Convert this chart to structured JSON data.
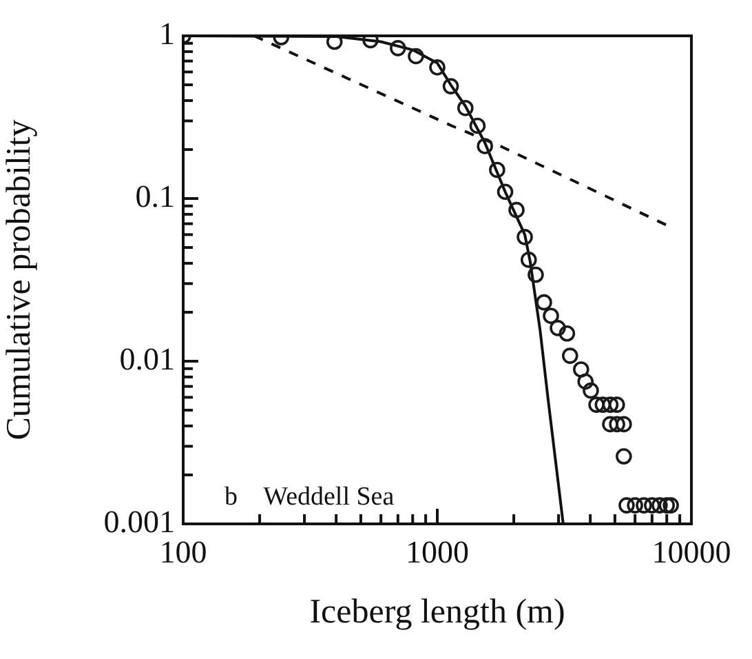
{
  "chart_data": {
    "type": "scatter",
    "xlabel": "Iceberg length (m)",
    "ylabel": "Cumulative probability",
    "log": "xy",
    "xlim": [
      100,
      10000
    ],
    "ylim": [
      0.001,
      1
    ],
    "xticks": [
      100,
      {
        "value": 200,
        "label": null
      },
      {
        "value": 300,
        "label": null
      },
      {
        "value": 400,
        "label": null
      },
      {
        "value": 500,
        "label": null
      },
      {
        "value": 600,
        "label": null
      },
      {
        "value": 700,
        "label": null
      },
      {
        "value": 800,
        "label": null
      },
      {
        "value": 900,
        "label": null
      },
      1000,
      {
        "value": 2000,
        "label": null
      },
      {
        "value": 3000,
        "label": null
      },
      {
        "value": 4000,
        "label": null
      },
      {
        "value": 5000,
        "label": null
      },
      {
        "value": 6000,
        "label": null
      },
      {
        "value": 7000,
        "label": null
      },
      {
        "value": 8000,
        "label": null
      },
      {
        "value": 9000,
        "label": null
      },
      10000
    ],
    "yticks": [
      0.001,
      {
        "value": 0.002,
        "label": null
      },
      {
        "value": 0.003,
        "label": null
      },
      {
        "value": 0.004,
        "label": null
      },
      {
        "value": 0.005,
        "label": null
      },
      {
        "value": 0.006,
        "label": null
      },
      {
        "value": 0.007,
        "label": null
      },
      {
        "value": 0.008,
        "label": null
      },
      {
        "value": 0.009,
        "label": null
      },
      0.01,
      {
        "value": 0.02,
        "label": null
      },
      {
        "value": 0.03,
        "label": null
      },
      {
        "value": 0.04,
        "label": null
      },
      {
        "value": 0.05,
        "label": null
      },
      {
        "value": 0.06,
        "label": null
      },
      {
        "value": 0.07,
        "label": null
      },
      {
        "value": 0.08,
        "label": null
      },
      {
        "value": 0.09,
        "label": null
      },
      0.1,
      {
        "value": 0.2,
        "label": null
      },
      {
        "value": 0.3,
        "label": null
      },
      {
        "value": 0.4,
        "label": null
      },
      {
        "value": 0.5,
        "label": null
      },
      {
        "value": 0.6,
        "label": null
      },
      {
        "value": 0.7,
        "label": null
      },
      {
        "value": 0.8,
        "label": null
      },
      {
        "value": 0.9,
        "label": null
      },
      1
    ],
    "grid": false,
    "legend": false,
    "annotations": [
      "b    Weddell Sea"
    ],
    "series": [
      {
        "marker": "circle",
        "color": "#1a1a1a",
        "x": [
          100,
          243,
          394,
          546,
          700,
          824,
          1000,
          1130,
          1290,
          1440,
          1540,
          1720,
          1850,
          2050,
          2210,
          2290,
          2440,
          2630,
          2800,
          2980,
          3240,
          3330,
          3680,
          3830,
          4020,
          4230,
          4480,
          4800,
          5090,
          4790,
          5100,
          5420,
          5420,
          5560,
          6000,
          6500,
          7000,
          7500,
          8000,
          8300
        ],
        "values": [
          1,
          0.98,
          0.92,
          0.94,
          0.84,
          0.75,
          0.64,
          0.49,
          0.36,
          0.28,
          0.21,
          0.15,
          0.11,
          0.085,
          0.058,
          0.042,
          0.034,
          0.023,
          0.019,
          0.016,
          0.0148,
          0.0108,
          0.0089,
          0.0075,
          0.0066,
          0.0054,
          0.0054,
          0.0054,
          0.0054,
          0.0041,
          0.0041,
          0.0041,
          0.0026,
          0.0013,
          0.0013,
          0.0013,
          0.0013,
          0.0013,
          0.0013,
          0.0013
        ]
      },
      {
        "type": "line",
        "line_style": "solid",
        "marker": "none",
        "color": "#111111",
        "x": [
          100,
          400,
          600,
          800,
          1000,
          1130,
          1290,
          1540,
          1850,
          2210,
          2320,
          2540,
          2730,
          3130
        ],
        "values": [
          1,
          0.99,
          0.92,
          0.82,
          0.68,
          0.5,
          0.37,
          0.22,
          0.11,
          0.06,
          0.041,
          0.0154,
          0.0058,
          0.001
        ]
      },
      {
        "type": "line",
        "line_style": "dashed",
        "marker": "none",
        "color": "#111111",
        "x": [
          190,
          1140,
          1770,
          8090
        ],
        "values": [
          1,
          0.28,
          0.21,
          0.068
        ]
      }
    ]
  }
}
